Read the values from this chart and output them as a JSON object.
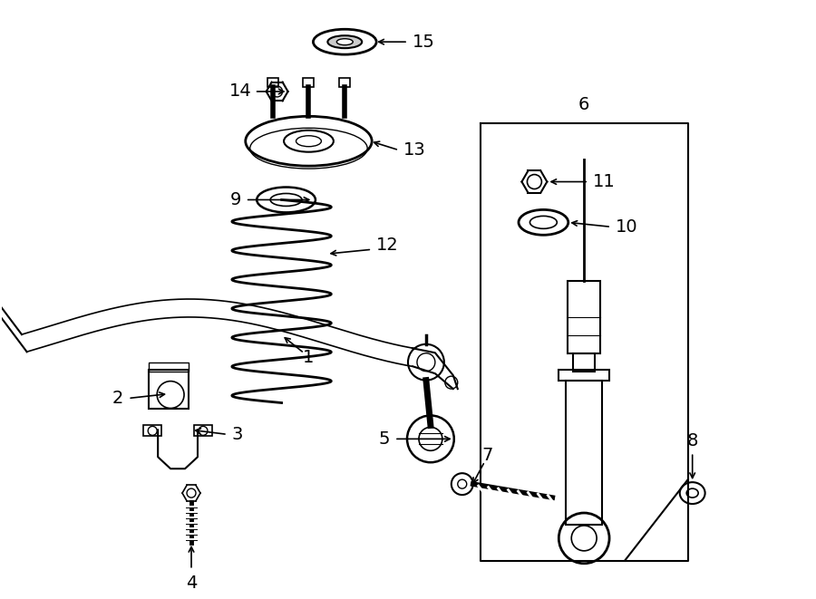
{
  "bg_color": "#ffffff",
  "line_color": "#000000",
  "fig_width": 9.0,
  "fig_height": 6.61,
  "label_fontsize": 14
}
